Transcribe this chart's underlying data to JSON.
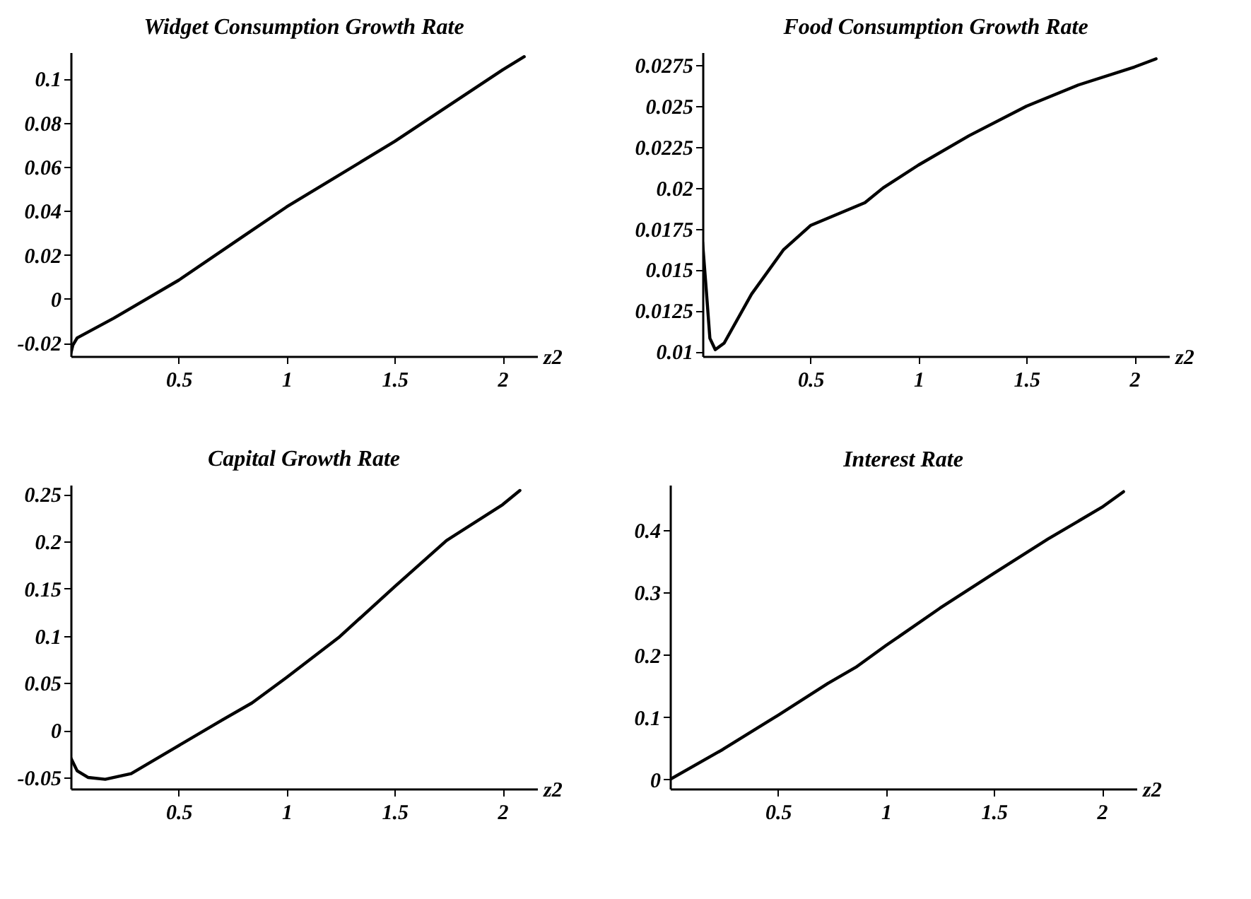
{
  "chart_data": [
    {
      "type": "line",
      "title": "Widget Consumption Growth Rate",
      "xlabel": "z2",
      "xlim": [
        0,
        2.16
      ],
      "ylim": [
        -0.026,
        0.112
      ],
      "xticks": [
        0.5,
        1,
        1.5,
        2
      ],
      "yticks": [
        -0.02,
        0,
        0.02,
        0.04,
        0.06,
        0.08,
        0.1
      ],
      "series": [
        {
          "color": "#000000",
          "x": [
            0,
            0.01,
            0.03,
            0.2,
            0.5,
            0.8,
            1,
            1.5,
            2,
            2.1
          ],
          "values": [
            -0.025,
            -0.021,
            -0.0177,
            -0.0087,
            0.0085,
            0.0285,
            0.0418,
            0.0715,
            0.104,
            0.11
          ]
        }
      ]
    },
    {
      "type": "line",
      "title": "Food Consumption Growth Rate",
      "xlabel": "z2",
      "xlim": [
        0,
        2.16
      ],
      "ylim": [
        0.0097,
        0.0283
      ],
      "xticks": [
        0.5,
        1,
        1.5,
        2
      ],
      "yticks": [
        0.01,
        0.0125,
        0.015,
        0.0175,
        0.02,
        0.0225,
        0.025,
        0.0275
      ],
      "series": [
        {
          "color": "#000000",
          "x": [
            0,
            0.017,
            0.034,
            0.059,
            0.1,
            0.227,
            0.374,
            0.5,
            0.752,
            0.836,
            1,
            1.235,
            1.5,
            1.74,
            2,
            2.1
          ],
          "values": [
            0.0167,
            0.0138,
            0.0108,
            0.0101,
            0.0105,
            0.0135,
            0.0162,
            0.0177,
            0.0191,
            0.02,
            0.0214,
            0.0232,
            0.025,
            0.0263,
            0.0274,
            0.0279
          ]
        }
      ]
    },
    {
      "type": "line",
      "title": "Capital Growth Rate",
      "xlabel": "z2",
      "xlim": [
        0,
        2.16
      ],
      "ylim": [
        -0.062,
        0.26
      ],
      "xticks": [
        0.5,
        1,
        1.5,
        2
      ],
      "yticks": [
        -0.05,
        0,
        0.05,
        0.1,
        0.15,
        0.2,
        0.25
      ],
      "series": [
        {
          "color": "#000000",
          "x": [
            0,
            0.03,
            0.08,
            0.16,
            0.28,
            0.48,
            0.68,
            0.84,
            1,
            1.24,
            1.5,
            1.74,
            2,
            2.08
          ],
          "values": [
            -0.029,
            -0.043,
            -0.05,
            -0.052,
            -0.046,
            -0.019,
            0.008,
            0.029,
            0.056,
            0.098,
            0.152,
            0.201,
            0.239,
            0.254
          ]
        }
      ]
    },
    {
      "type": "line",
      "title": "Interest Rate",
      "xlabel": "z2",
      "xlim": [
        0,
        2.16
      ],
      "ylim": [
        -0.015,
        0.473
      ],
      "xticks": [
        0.5,
        1,
        1.5,
        2
      ],
      "yticks": [
        0,
        0.1,
        0.2,
        0.3,
        0.4
      ],
      "series": [
        {
          "color": "#000000",
          "x": [
            0,
            0.244,
            0.5,
            0.73,
            0.86,
            1,
            1.25,
            1.5,
            1.75,
            2,
            2.1
          ],
          "values": [
            0,
            0.048,
            0.103,
            0.154,
            0.18,
            0.215,
            0.275,
            0.331,
            0.386,
            0.437,
            0.462
          ]
        }
      ]
    }
  ]
}
